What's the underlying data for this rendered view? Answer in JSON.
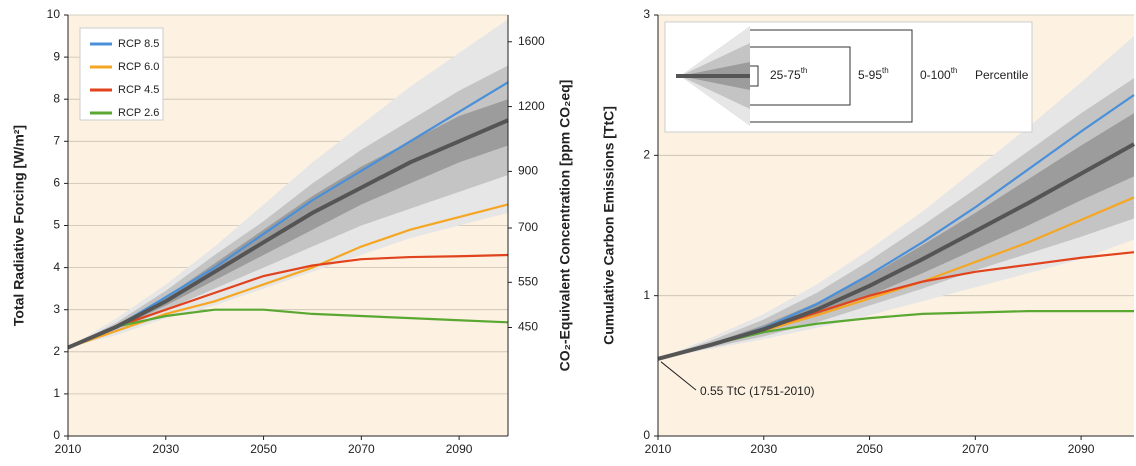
{
  "chart_data": [
    {
      "type": "line",
      "ylabel": "Total Radiative Forcing [W/m²]",
      "y2label": "CO₂-Equivalent Concentration [ppm CO₂eq]",
      "x": [
        2010,
        2020,
        2030,
        2040,
        2050,
        2060,
        2070,
        2080,
        2090,
        2100
      ],
      "xlim": [
        2010,
        2100
      ],
      "xticks": [
        2010,
        2030,
        2050,
        2070,
        2090
      ],
      "ylim": [
        0,
        10
      ],
      "yticks": [
        0,
        1,
        2,
        3,
        4,
        5,
        6,
        7,
        8,
        9,
        10
      ],
      "y2log": true,
      "y2lim": [
        278,
        1802
      ],
      "y2ticks": [
        450,
        550,
        700,
        900,
        1200,
        1600
      ],
      "grid": true,
      "series": [
        {
          "name": "RCP 8.5",
          "color": "#4a90d9",
          "values": [
            2.1,
            2.6,
            3.3,
            4.0,
            4.8,
            5.6,
            6.3,
            7.0,
            7.7,
            8.4
          ]
        },
        {
          "name": "RCP 6.0",
          "color": "#f5a623",
          "values": [
            2.1,
            2.5,
            2.9,
            3.2,
            3.6,
            4.0,
            4.5,
            4.9,
            5.2,
            5.5
          ]
        },
        {
          "name": "RCP 4.5",
          "color": "#e0431d",
          "values": [
            2.1,
            2.6,
            3.0,
            3.4,
            3.8,
            4.05,
            4.2,
            4.25,
            4.27,
            4.3
          ]
        },
        {
          "name": "RCP 2.6",
          "color": "#5aa832",
          "values": [
            2.1,
            2.6,
            2.85,
            3.0,
            3.0,
            2.9,
            2.85,
            2.8,
            2.75,
            2.7
          ]
        }
      ],
      "median": {
        "color": "#555555",
        "values": [
          2.1,
          2.6,
          3.2,
          3.9,
          4.6,
          5.3,
          5.9,
          6.5,
          7.0,
          7.5
        ]
      },
      "bands": [
        {
          "name": "0-100",
          "color": "#e6e6e6",
          "lower": [
            2.1,
            2.4,
            2.8,
            3.1,
            3.5,
            3.9,
            4.3,
            4.7,
            5.0,
            5.3
          ],
          "upper": [
            2.1,
            2.8,
            3.6,
            4.5,
            5.5,
            6.5,
            7.4,
            8.3,
            9.1,
            9.9
          ]
        },
        {
          "name": "5-95",
          "color": "#c4c4c4",
          "lower": [
            2.1,
            2.5,
            3.0,
            3.5,
            4.0,
            4.5,
            5.0,
            5.4,
            5.8,
            6.2
          ],
          "upper": [
            2.1,
            2.7,
            3.45,
            4.3,
            5.1,
            6.0,
            6.8,
            7.5,
            8.2,
            8.8
          ]
        },
        {
          "name": "25-75",
          "color": "#9c9c9c",
          "lower": [
            2.1,
            2.55,
            3.1,
            3.7,
            4.3,
            4.9,
            5.5,
            6.0,
            6.5,
            6.9
          ],
          "upper": [
            2.1,
            2.65,
            3.3,
            4.1,
            4.9,
            5.7,
            6.4,
            7.0,
            7.6,
            8.0
          ]
        }
      ]
    },
    {
      "type": "line",
      "ylabel": "Cumulative Carbon Emissions [TtC]",
      "x": [
        2010,
        2020,
        2030,
        2040,
        2050,
        2060,
        2070,
        2080,
        2090,
        2100
      ],
      "xlim": [
        2010,
        2100
      ],
      "xticks": [
        2010,
        2030,
        2050,
        2070,
        2090
      ],
      "ylim": [
        0,
        3
      ],
      "yticks": [
        0,
        1,
        2,
        3
      ],
      "grid": true,
      "annotation": "0.55 TtC (1751-2010)",
      "ordinal": "th",
      "percentile_label": "Percentile",
      "series": [
        {
          "name": "RCP 8.5",
          "color": "#4a90d9",
          "values": [
            0.55,
            0.65,
            0.77,
            0.94,
            1.15,
            1.38,
            1.63,
            1.9,
            2.17,
            2.43
          ]
        },
        {
          "name": "RCP 6.0",
          "color": "#f5a623",
          "values": [
            0.55,
            0.65,
            0.75,
            0.86,
            0.98,
            1.1,
            1.24,
            1.38,
            1.54,
            1.7
          ]
        },
        {
          "name": "RCP 4.5",
          "color": "#e0431d",
          "values": [
            0.55,
            0.65,
            0.76,
            0.88,
            1.0,
            1.1,
            1.17,
            1.22,
            1.27,
            1.31
          ]
        },
        {
          "name": "RCP 2.6",
          "color": "#5aa832",
          "values": [
            0.55,
            0.65,
            0.74,
            0.8,
            0.84,
            0.87,
            0.88,
            0.89,
            0.89,
            0.89
          ]
        }
      ],
      "median": {
        "color": "#555555",
        "values": [
          0.55,
          0.65,
          0.76,
          0.9,
          1.07,
          1.26,
          1.46,
          1.66,
          1.87,
          2.08
        ]
      },
      "bands": [
        {
          "name": "0-100",
          "color": "#e6e6e6",
          "lower": [
            0.55,
            0.62,
            0.69,
            0.77,
            0.86,
            0.96,
            1.06,
            1.16,
            1.26,
            1.4
          ],
          "upper": [
            0.55,
            0.7,
            0.87,
            1.08,
            1.33,
            1.6,
            1.9,
            2.2,
            2.52,
            2.85
          ]
        },
        {
          "name": "5-95",
          "color": "#c4c4c4",
          "lower": [
            0.55,
            0.63,
            0.71,
            0.81,
            0.93,
            1.05,
            1.18,
            1.3,
            1.42,
            1.55
          ],
          "upper": [
            0.55,
            0.68,
            0.83,
            1.02,
            1.25,
            1.5,
            1.76,
            2.03,
            2.3,
            2.55
          ]
        },
        {
          "name": "25-75",
          "color": "#9c9c9c",
          "lower": [
            0.55,
            0.64,
            0.74,
            0.86,
            1.0,
            1.16,
            1.33,
            1.5,
            1.68,
            1.85
          ],
          "upper": [
            0.55,
            0.66,
            0.79,
            0.95,
            1.14,
            1.36,
            1.59,
            1.83,
            2.07,
            2.3
          ]
        }
      ]
    }
  ]
}
